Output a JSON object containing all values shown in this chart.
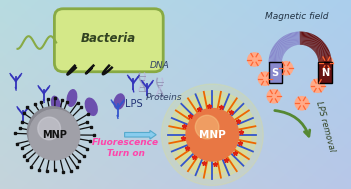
{
  "bg_top_left": "#b8ddc8",
  "bg_top_right": "#c8dde8",
  "bg_bottom": "#aac8e0",
  "bacteria_color": "#d4e888",
  "bacteria_border": "#88aa44",
  "bacteria_text": "Bacteria",
  "mnp_label": "MNP",
  "lps_label": "LPS",
  "dna_label": "DNA",
  "proteins_label": "Proteins",
  "fluorescence_label": "Fluorescence\nTurn on",
  "magnetic_label": "Magnetic field",
  "lps_removal_label": "LPS removal",
  "fluor_text_color": "#ff44aa",
  "peptide_color": "#3333bb",
  "protein_color": "#6644aa",
  "arrow_fill": "#88ccee",
  "spine_dark": "#111111",
  "spine_blue": "#3355cc",
  "spine_orange": "#ee6600",
  "star_red": "#dd2211",
  "mnp_left_color": "#a8a8b0",
  "mnp_right_color": "#e87744",
  "glow_color": "#ffee44",
  "magnet_s_color": "#8888cc",
  "magnet_n_color": "#661111",
  "nanoparticle_color": "#ffaa88",
  "lps_remove_arrow": "#558833",
  "dna_color": "#aaaacc",
  "flagellum_color": "#88aa44"
}
